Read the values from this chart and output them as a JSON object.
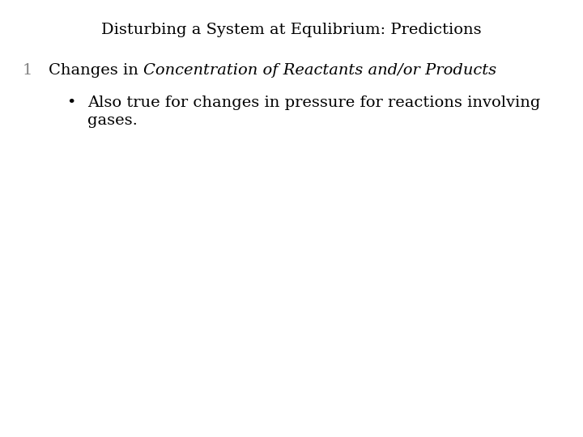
{
  "title": "Disturbing a System at Equlibrium: Predictions",
  "title_fontsize": 14,
  "title_color": "#000000",
  "background_color": "#ffffff",
  "number_label": "1",
  "number_color": "#808080",
  "number_fontsize": 14,
  "line1_prefix": "Changes in ",
  "line1_italic": "Concentration of Reactants and/or Products",
  "line1_fontsize": 14,
  "text_color": "#000000",
  "bullet_char": "•",
  "bullet_fontsize": 14,
  "line2_text": "Also true for changes in pressure for reactions involving",
  "line2_fontsize": 14,
  "line3_text": "gases.",
  "line3_fontsize": 14
}
